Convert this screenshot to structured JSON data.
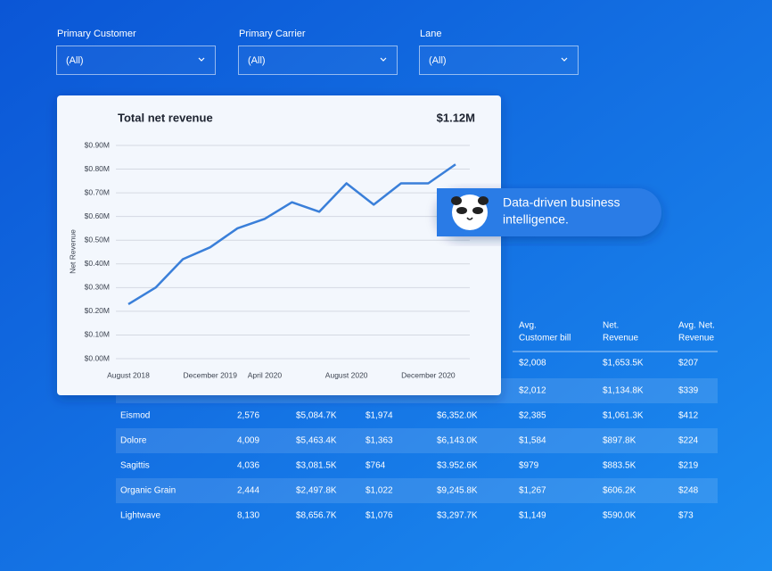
{
  "filters": [
    {
      "label": "Primary Customer",
      "value": "(All)"
    },
    {
      "label": "Primary Carrier",
      "value": "(All)"
    },
    {
      "label": "Lane",
      "value": "(All)"
    }
  ],
  "card": {
    "headline": "$1.12M"
  },
  "chart_data": {
    "type": "line",
    "title": "Total net revenue",
    "y_label": "Net Revenue",
    "categories": [
      "August 2018",
      null,
      null,
      "December 2019",
      null,
      "April 2020",
      null,
      null,
      "August 2020",
      null,
      null,
      "December 2020",
      null
    ],
    "values": [
      0.23,
      0.3,
      0.42,
      0.47,
      0.55,
      0.59,
      0.66,
      0.62,
      0.74,
      0.65,
      0.74,
      0.74,
      0.82
    ],
    "color": "#3a7fd9",
    "ylim": [
      0,
      0.9
    ],
    "yticks": [
      {
        "value": 0,
        "label": "$0.00M"
      },
      {
        "value": 0.1,
        "label": "$0.10M"
      },
      {
        "value": 0.2,
        "label": "$0.20M"
      },
      {
        "value": 0.3,
        "label": "$0.30M"
      },
      {
        "value": 0.4,
        "label": "$0.40M"
      },
      {
        "value": 0.5,
        "label": "$0.50M"
      },
      {
        "value": 0.6,
        "label": "$0.60M"
      },
      {
        "value": 0.7,
        "label": "$0.70M"
      },
      {
        "value": 0.8,
        "label": "$0.80M"
      },
      {
        "value": 0.9,
        "label": "$0.90M"
      }
    ],
    "grid": true
  },
  "callout": {
    "lines": [
      "Data-driven business",
      "intelligence."
    ]
  },
  "table": {
    "headers": [
      null,
      null,
      null,
      null,
      null,
      [
        "Avg.",
        "Customer bill"
      ],
      [
        "Net.",
        "Revenue"
      ],
      [
        "Avg. Net.",
        "Revenue"
      ]
    ],
    "rows": [
      [
        null,
        null,
        null,
        null,
        null,
        "$2,008",
        "$1,653.5K",
        "$207"
      ],
      [
        null,
        null,
        null,
        null,
        null,
        "$2,012",
        "$1,134.8K",
        "$339"
      ],
      [
        "Eismod",
        "2,576",
        "$5,084.7K",
        "$1,974",
        "$6,352.0K",
        "$2,385",
        "$1,061.3K",
        "$412"
      ],
      [
        "Dolore",
        "4,009",
        "$5,463.4K",
        "$1,363",
        "$6,143.0K",
        "$1,584",
        "$897.8K",
        "$224"
      ],
      [
        "Sagittis",
        "4,036",
        "$3,081.5K",
        "$764",
        "$3.952.6K",
        "$979",
        "$883.5K",
        "$219"
      ],
      [
        "Organic Grain",
        "2,444",
        "$2,497.8K",
        "$1,022",
        "$9,245.8K",
        "$1,267",
        "$606.2K",
        "$248"
      ],
      [
        "Lightwave",
        "8,130",
        "$8,656.7K",
        "$1,076",
        "$3,297.7K",
        "$1,149",
        "$590.0K",
        "$73"
      ]
    ]
  }
}
